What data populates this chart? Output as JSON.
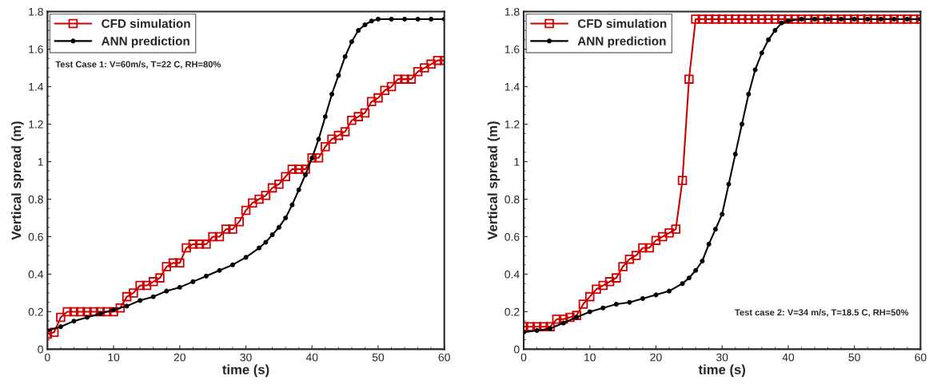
{
  "chart_data": [
    {
      "type": "line",
      "xlabel": "time (s)",
      "ylabel": "Vertical spread (m)",
      "xlim": [
        0,
        60
      ],
      "ylim": [
        0,
        1.8
      ],
      "xticks": [
        0,
        10,
        20,
        30,
        40,
        50,
        60
      ],
      "yticks": [
        0,
        0.2,
        0.4,
        0.6,
        0.8,
        1,
        1.2,
        1.4,
        1.6,
        1.8
      ],
      "grid": false,
      "legend": "top left",
      "annotations": [
        "Test Case 1: V=60m/s, T=22 C, RH=80%"
      ],
      "series": [
        {
          "name": "CFD simulation",
          "color": "#d00000",
          "marker": "square",
          "x": [
            0,
            1,
            2,
            3,
            4,
            5,
            6,
            7,
            8,
            9,
            10,
            11,
            12,
            13,
            14,
            15,
            16,
            17,
            18,
            19,
            20,
            21,
            22,
            23,
            24,
            25,
            26,
            27,
            28,
            29,
            30,
            31,
            32,
            33,
            34,
            35,
            36,
            37,
            38,
            39,
            40,
            41,
            42,
            43,
            44,
            45,
            46,
            47,
            48,
            49,
            50,
            51,
            52,
            53,
            54,
            55,
            56,
            57,
            58,
            59,
            60
          ],
          "values": [
            0.08,
            0.09,
            0.17,
            0.2,
            0.2,
            0.2,
            0.2,
            0.2,
            0.2,
            0.2,
            0.2,
            0.22,
            0.28,
            0.3,
            0.34,
            0.34,
            0.36,
            0.38,
            0.44,
            0.46,
            0.46,
            0.54,
            0.56,
            0.56,
            0.56,
            0.6,
            0.6,
            0.64,
            0.64,
            0.68,
            0.74,
            0.78,
            0.8,
            0.82,
            0.86,
            0.88,
            0.92,
            0.96,
            0.96,
            0.96,
            1.02,
            1.02,
            1.08,
            1.12,
            1.14,
            1.16,
            1.22,
            1.24,
            1.26,
            1.32,
            1.34,
            1.38,
            1.4,
            1.44,
            1.44,
            1.44,
            1.48,
            1.5,
            1.52,
            1.54,
            1.54
          ]
        },
        {
          "name": "ANN prediction",
          "color": "#000000",
          "marker": "circle",
          "x": [
            0,
            2,
            4,
            6,
            8,
            10,
            12,
            14,
            16,
            18,
            20,
            22,
            24,
            26,
            28,
            30,
            32,
            33,
            34,
            35,
            36,
            37,
            38,
            39,
            40,
            41,
            42,
            43,
            44,
            45,
            46,
            47,
            48,
            49,
            50,
            52,
            54,
            56,
            58,
            60
          ],
          "values": [
            0.1,
            0.12,
            0.15,
            0.17,
            0.19,
            0.21,
            0.23,
            0.26,
            0.28,
            0.31,
            0.33,
            0.36,
            0.39,
            0.42,
            0.45,
            0.49,
            0.54,
            0.57,
            0.61,
            0.65,
            0.7,
            0.77,
            0.85,
            0.93,
            1.02,
            1.12,
            1.24,
            1.36,
            1.46,
            1.56,
            1.64,
            1.7,
            1.73,
            1.75,
            1.76,
            1.76,
            1.76,
            1.76,
            1.76,
            1.76
          ]
        }
      ]
    },
    {
      "type": "line",
      "xlabel": "time (s)",
      "ylabel": "Vertical spread (m)",
      "xlim": [
        0,
        60
      ],
      "ylim": [
        0,
        1.8
      ],
      "xticks": [
        0,
        10,
        20,
        30,
        40,
        50,
        60
      ],
      "yticks": [
        0,
        0.2,
        0.4,
        0.6,
        0.8,
        1,
        1.2,
        1.4,
        1.6,
        1.8
      ],
      "grid": false,
      "legend": "top left",
      "annotations": [
        "Test case 2: V=34 m/s, T=18.5 C, RH=50%"
      ],
      "series": [
        {
          "name": "CFD simulation",
          "color": "#d00000",
          "marker": "square",
          "x": [
            0,
            1,
            2,
            3,
            4,
            5,
            6,
            7,
            8,
            9,
            10,
            11,
            12,
            13,
            14,
            15,
            16,
            17,
            18,
            19,
            20,
            21,
            22,
            23,
            24,
            25,
            26,
            27,
            28,
            29,
            30,
            31,
            32,
            33,
            34,
            35,
            36,
            37,
            38,
            39,
            40,
            41,
            42,
            43,
            44,
            45,
            46,
            47,
            48,
            49,
            50,
            51,
            52,
            53,
            54,
            55,
            56,
            57,
            58,
            59,
            60
          ],
          "values": [
            0.12,
            0.12,
            0.12,
            0.12,
            0.12,
            0.16,
            0.16,
            0.17,
            0.18,
            0.24,
            0.28,
            0.32,
            0.34,
            0.36,
            0.38,
            0.44,
            0.48,
            0.5,
            0.54,
            0.54,
            0.58,
            0.6,
            0.62,
            0.64,
            0.9,
            1.44,
            1.76,
            1.76,
            1.76,
            1.76,
            1.76,
            1.76,
            1.76,
            1.76,
            1.76,
            1.76,
            1.76,
            1.76,
            1.76,
            1.76,
            1.76,
            1.76,
            1.76,
            1.76,
            1.76,
            1.76,
            1.76,
            1.76,
            1.76,
            1.76,
            1.76,
            1.76,
            1.76,
            1.76,
            1.76,
            1.76,
            1.76,
            1.76,
            1.76,
            1.76,
            1.76
          ]
        },
        {
          "name": "ANN prediction",
          "color": "#000000",
          "marker": "circle",
          "x": [
            0,
            2,
            4,
            6,
            8,
            10,
            12,
            14,
            16,
            18,
            20,
            22,
            24,
            25,
            26,
            27,
            28,
            29,
            30,
            31,
            32,
            33,
            34,
            35,
            36,
            37,
            38,
            39,
            40,
            42,
            44,
            46,
            48,
            50,
            52,
            54,
            56,
            58,
            60
          ],
          "values": [
            0.09,
            0.1,
            0.11,
            0.14,
            0.17,
            0.2,
            0.22,
            0.24,
            0.25,
            0.27,
            0.29,
            0.31,
            0.35,
            0.38,
            0.42,
            0.47,
            0.56,
            0.64,
            0.72,
            0.88,
            1.04,
            1.2,
            1.36,
            1.49,
            1.58,
            1.65,
            1.7,
            1.74,
            1.75,
            1.76,
            1.76,
            1.76,
            1.76,
            1.76,
            1.76,
            1.76,
            1.76,
            1.76,
            1.76
          ]
        }
      ]
    }
  ]
}
